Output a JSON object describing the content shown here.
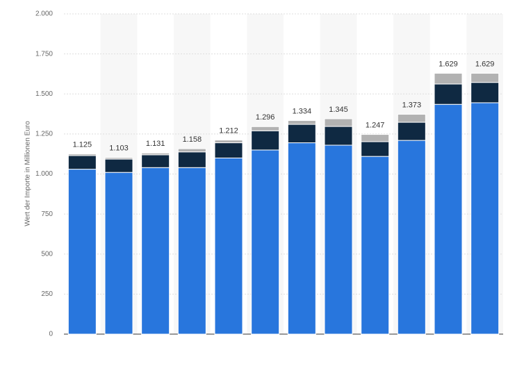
{
  "chart_data": {
    "type": "stacked_bar",
    "y_label": "Wert der Importe in Millionen Euro",
    "categories": [
      null,
      null,
      null,
      null,
      null,
      null,
      null,
      null,
      null,
      null,
      null,
      null
    ],
    "series": [
      {
        "color": "#2876dd",
        "values": [
          1030,
          1010,
          1040,
          1040,
          1100,
          1150,
          1195,
          1180,
          1110,
          1210,
          1435,
          1445
        ]
      },
      {
        "color": "#0f2942",
        "values": [
          85,
          83,
          80,
          98,
          95,
          120,
          115,
          117,
          92,
          113,
          127,
          127
        ]
      },
      {
        "color": "#b2b2b2",
        "values": [
          10,
          10,
          11,
          20,
          17,
          26,
          24,
          48,
          45,
          50,
          67,
          57
        ]
      }
    ],
    "totals": {
      "values": [
        1125,
        1103,
        1131,
        1158,
        1212,
        1296,
        1334,
        1345,
        1247,
        1373,
        1629,
        1629
      ],
      "value_labels": [
        "1.125",
        "1.103",
        "1.131",
        "1.158",
        "1.212",
        "1.296",
        "1.334",
        "1.345",
        "1.247",
        "1.373",
        "1.629",
        "1.629"
      ]
    },
    "ylim": [
      0,
      2000
    ],
    "yticks": [
      0,
      250,
      500,
      750,
      {
        "value": 1000,
        "label": "1.000"
      },
      {
        "value": 1250,
        "label": "1.250"
      },
      {
        "value": 1500,
        "label": "1.500"
      },
      {
        "value": 1750,
        "label": "1.750"
      },
      {
        "value": 2000,
        "label": "2.000"
      }
    ],
    "grid": true
  }
}
